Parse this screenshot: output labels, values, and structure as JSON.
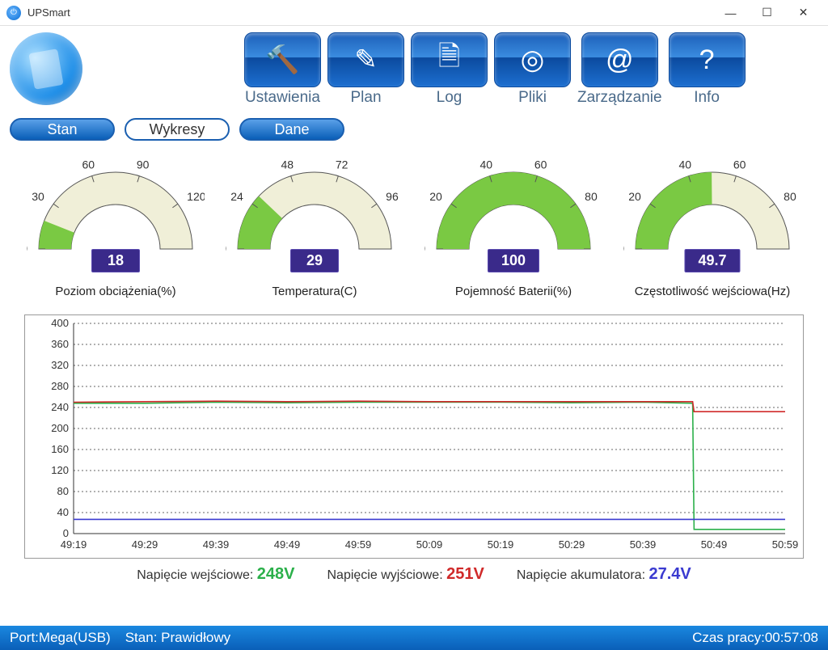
{
  "window": {
    "title": "UPSmart"
  },
  "toolbar": [
    {
      "label": "Ustawienia",
      "icon": "🔨"
    },
    {
      "label": "Plan",
      "icon": "✎"
    },
    {
      "label": "Log",
      "icon": "🗎"
    },
    {
      "label": "Pliki",
      "icon": "◎"
    },
    {
      "label": "Zarządzanie",
      "icon": "@"
    },
    {
      "label": "Info",
      "icon": "?"
    }
  ],
  "tabs": {
    "stan": {
      "label": "Stan",
      "active": false
    },
    "wykresy": {
      "label": "Wykresy",
      "active": true
    },
    "dane": {
      "label": "Dane",
      "active": false
    }
  },
  "gauges": [
    {
      "label": "Poziom obciążenia(%)",
      "value": "18",
      "min": 0,
      "max": 150,
      "ticks": [
        0,
        30,
        60,
        90,
        120,
        150
      ],
      "fill_color": "#7ac943",
      "face_color": "#f0efd8"
    },
    {
      "label": "Temperatura(C)",
      "value": "29",
      "min": 0,
      "max": 120,
      "ticks": [
        0,
        24,
        48,
        72,
        96,
        120
      ],
      "fill_color": "#7ac943",
      "face_color": "#f0efd8"
    },
    {
      "label": "Pojemność Baterii(%)",
      "value": "100",
      "min": 0,
      "max": 100,
      "ticks": [
        0,
        20,
        40,
        60,
        80,
        100
      ],
      "fill_color": "#7ac943",
      "face_color": "#f0efd8"
    },
    {
      "label": "Częstotliwość wejściowa(Hz)",
      "value": "49.7",
      "min": 0,
      "max": 100,
      "ticks": [
        0,
        20,
        40,
        60,
        80,
        100
      ],
      "fill_color": "#7ac943",
      "face_color": "#f0efd8"
    }
  ],
  "gauge_value_box": {
    "bg": "#3a2a8a",
    "fg": "#ffffff"
  },
  "chart": {
    "ylim": [
      0,
      400
    ],
    "yticks": [
      0,
      40,
      80,
      120,
      160,
      200,
      240,
      280,
      320,
      360,
      400
    ],
    "xticks": [
      "49:19",
      "49:29",
      "49:39",
      "49:49",
      "49:59",
      "50:09",
      "50:19",
      "50:29",
      "50:39",
      "50:49",
      "50:59"
    ],
    "grid_color": "#666666",
    "series": [
      {
        "name": "input_voltage",
        "color": "#2bb04a",
        "points": [
          [
            0,
            248
          ],
          [
            1,
            248
          ],
          [
            2,
            250
          ],
          [
            3,
            249
          ],
          [
            4,
            250
          ],
          [
            5,
            250
          ],
          [
            6,
            250
          ],
          [
            7,
            249
          ],
          [
            8,
            250
          ],
          [
            8.7,
            248
          ],
          [
            8.72,
            8
          ],
          [
            9,
            8
          ],
          [
            9.3,
            8
          ],
          [
            10,
            8
          ]
        ]
      },
      {
        "name": "output_voltage",
        "color": "#d02a2a",
        "points": [
          [
            0,
            250
          ],
          [
            1,
            251
          ],
          [
            2,
            252
          ],
          [
            3,
            251
          ],
          [
            4,
            252
          ],
          [
            5,
            251
          ],
          [
            6,
            251
          ],
          [
            7,
            251
          ],
          [
            8,
            251
          ],
          [
            8.7,
            251
          ],
          [
            8.72,
            232
          ],
          [
            9,
            232
          ],
          [
            9.3,
            232
          ],
          [
            10,
            232
          ]
        ]
      },
      {
        "name": "battery_voltage",
        "color": "#3a3ad0",
        "points": [
          [
            0,
            27
          ],
          [
            1,
            27
          ],
          [
            2,
            27
          ],
          [
            3,
            27
          ],
          [
            4,
            27
          ],
          [
            5,
            27
          ],
          [
            6,
            27
          ],
          [
            7,
            27
          ],
          [
            8,
            27
          ],
          [
            9,
            27
          ],
          [
            10,
            27
          ]
        ]
      }
    ]
  },
  "legend": {
    "input": {
      "label": "Napięcie wejściowe:",
      "value": "248V",
      "color": "#2bb04a"
    },
    "output": {
      "label": "Napięcie wyjściowe:",
      "value": "251V",
      "color": "#d02a2a"
    },
    "battery": {
      "label": "Napięcie akumulatora:",
      "value": "27.4V",
      "color": "#3a3ad0"
    }
  },
  "status": {
    "port_label": "Port:",
    "port_value": "Mega(USB)",
    "state_label": "Stan:",
    "state_value": "Prawidłowy",
    "uptime_label": "Czas pracy:",
    "uptime_value": "00:57:08"
  }
}
